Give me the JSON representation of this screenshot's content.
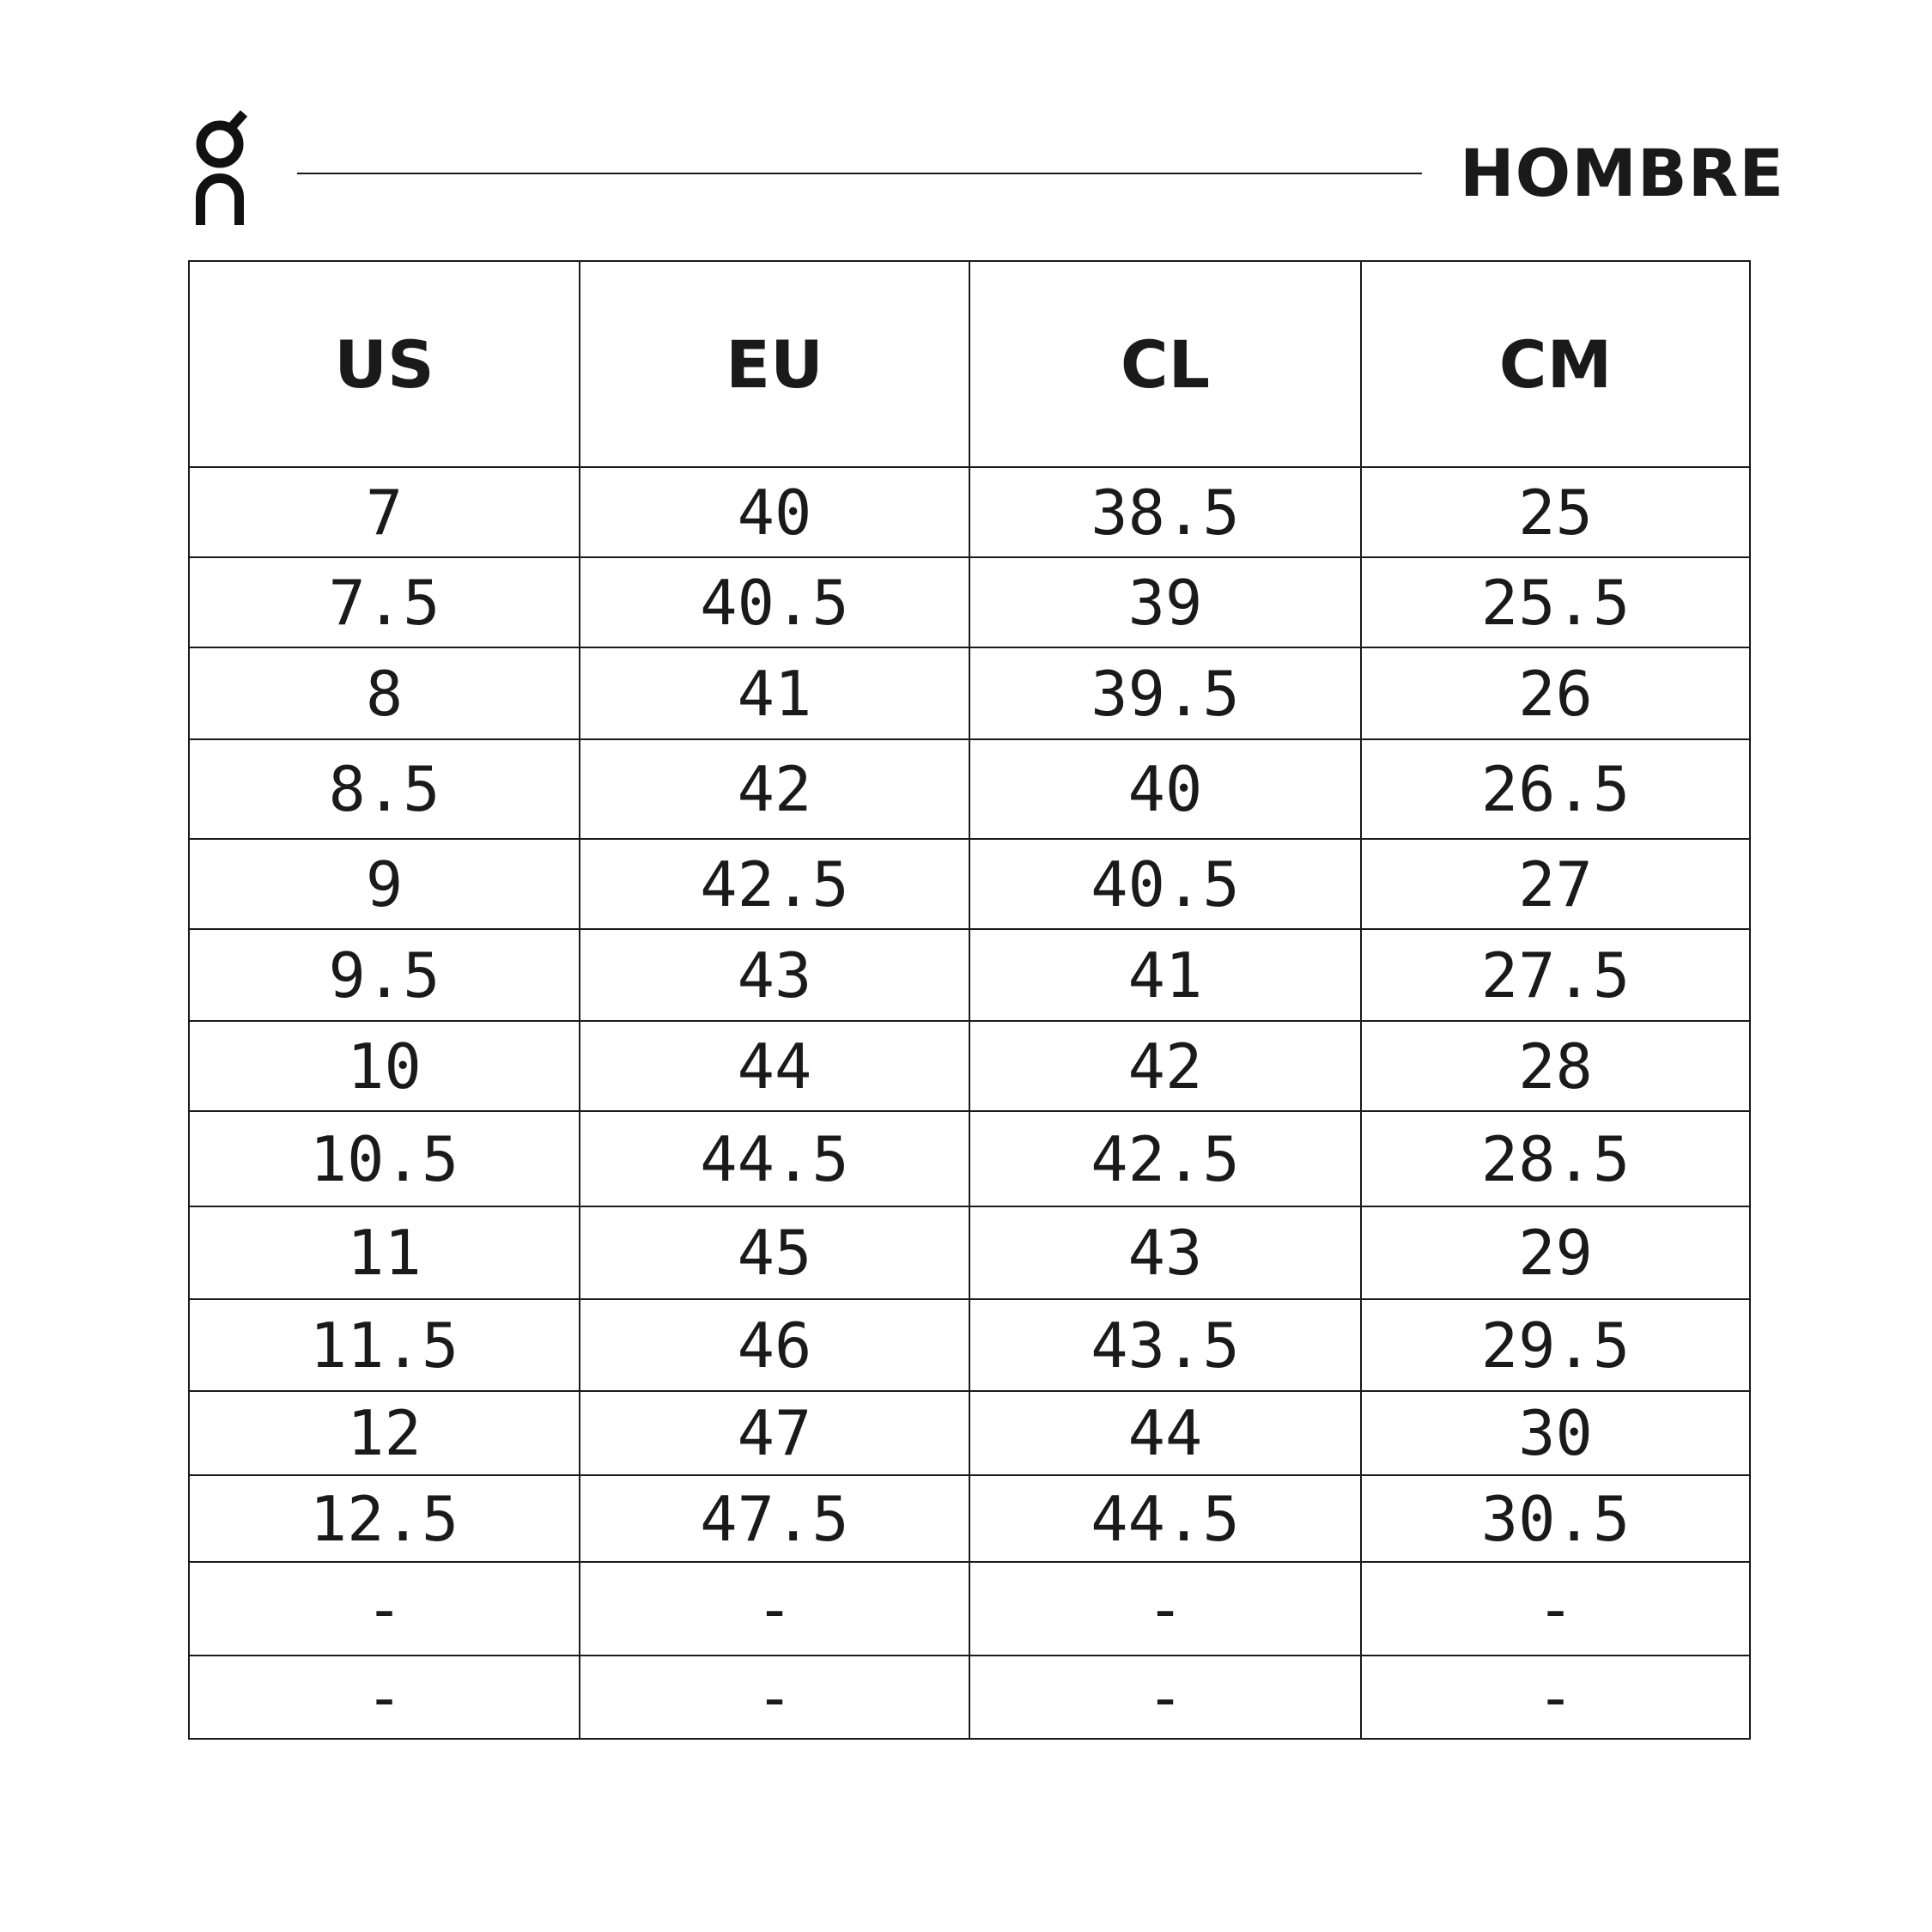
{
  "brand": {
    "logo_text": "On"
  },
  "title": "HOMBRE",
  "table": {
    "headers": [
      "US",
      "EU",
      "CL",
      "CM"
    ],
    "rows": [
      [
        "7",
        "40",
        "38.5",
        "25"
      ],
      [
        "7.5",
        "40.5",
        "39",
        "25.5"
      ],
      [
        "8",
        "41",
        "39.5",
        "26"
      ],
      [
        "8.5",
        "42",
        "40",
        "26.5"
      ],
      [
        "9",
        "42.5",
        "40.5",
        "27"
      ],
      [
        "9.5",
        "43",
        "41",
        "27.5"
      ],
      [
        "10",
        "44",
        "42",
        "28"
      ],
      [
        "10.5",
        "44.5",
        "42.5",
        "28.5"
      ],
      [
        "11",
        "45",
        "43",
        "29"
      ],
      [
        "11.5",
        "46",
        "43.5",
        "29.5"
      ],
      [
        "12",
        "47",
        "44",
        "30"
      ],
      [
        "12.5",
        "47.5",
        "44.5",
        "30.5"
      ],
      [
        "-",
        "-",
        "-",
        "-"
      ],
      [
        "-",
        "-",
        "-",
        "-"
      ]
    ]
  }
}
